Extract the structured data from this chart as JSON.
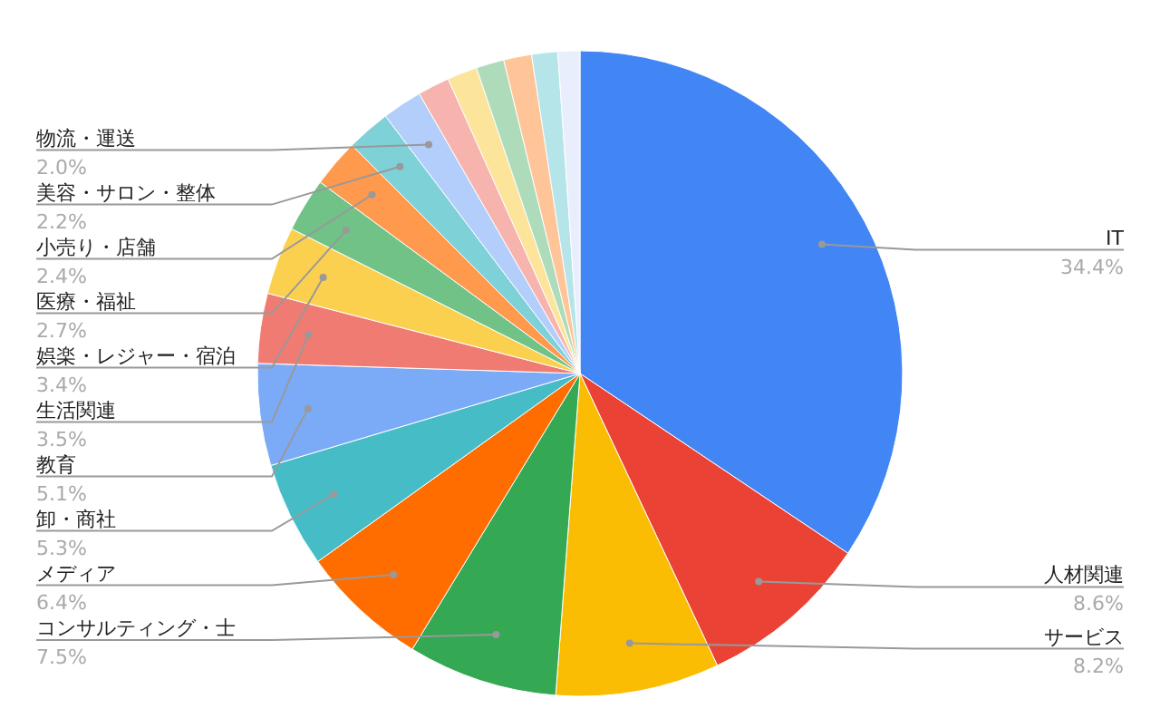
{
  "chart_data": {
    "type": "pie",
    "categories": [
      "IT",
      "人材関連",
      "サービス",
      "コンサルティング・士",
      "メディア",
      "卸・商社",
      "教育",
      "生活関連",
      "娯楽・レジャー・宿泊",
      "医療・福祉",
      "小売り・店舗",
      "美容・サロン・整体",
      "物流・運送",
      null,
      null,
      null,
      null,
      null,
      null
    ],
    "values": [
      34.4,
      8.6,
      8.2,
      7.5,
      6.4,
      5.3,
      5.1,
      3.5,
      3.4,
      2.7,
      2.4,
      2.2,
      2.0,
      1.6,
      1.5,
      1.4,
      1.4,
      1.3,
      1.1
    ],
    "value_labels": [
      "34.4%",
      "8.6%",
      "8.2%",
      "7.5%",
      "6.4%",
      "5.3%",
      "5.1%",
      "3.5%",
      "3.4%",
      "2.7%",
      "2.4%",
      "2.2%",
      "2.0%",
      null,
      null,
      null,
      null,
      null,
      null
    ],
    "colors": [
      "#4285f4",
      "#ea4335",
      "#fbbc04",
      "#34a853",
      "#ff6d01",
      "#46bdc6",
      "#7baaf7",
      "#f07b72",
      "#fcd04f",
      "#71c287",
      "#ff994d",
      "#7ed1d7",
      "#b3cefb",
      "#f7b4ae",
      "#fde49b",
      "#aedcba",
      "#ffc599",
      "#b5e5e8",
      "#e8eefc"
    ]
  }
}
